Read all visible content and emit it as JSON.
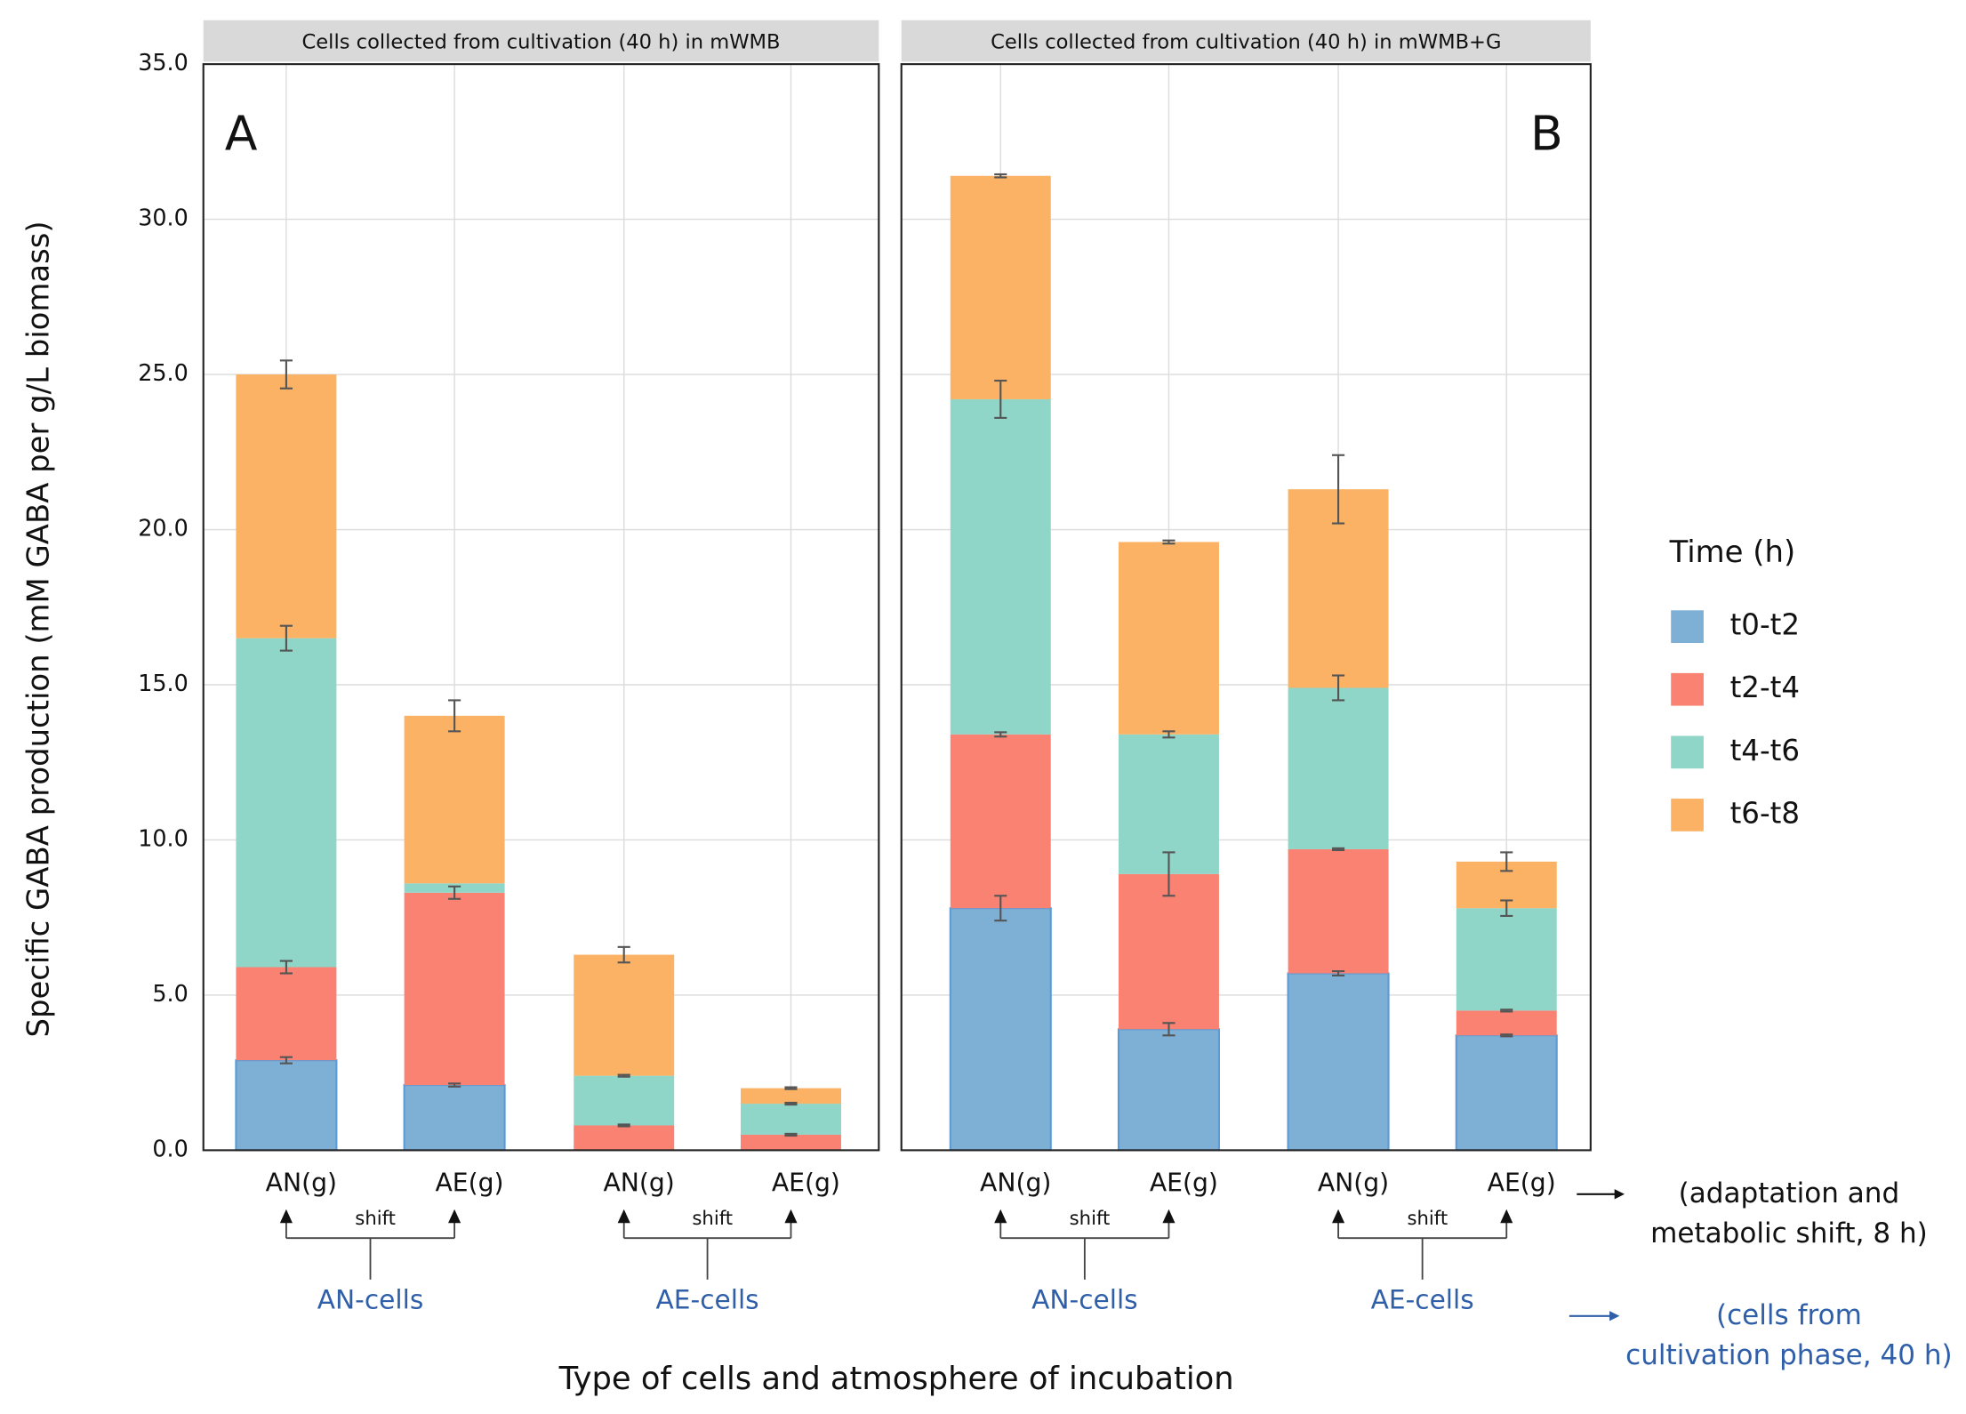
{
  "chart_data": {
    "type": "bar",
    "stacked": true,
    "y_label": "Specific GABA production (mM GABA per g/L biomass)",
    "x_label": "Type of cells and atmosphere of incubation",
    "legend_title": "Time (h)",
    "ylim": [
      0,
      35
    ],
    "yticks": [
      {
        "value": 0,
        "label": "0.0"
      },
      {
        "value": 5,
        "label": "5.0"
      },
      {
        "value": 10,
        "label": "10.0"
      },
      {
        "value": 15,
        "label": "15.0"
      },
      {
        "value": 20,
        "label": "20.0"
      },
      {
        "value": 25,
        "label": "25.0"
      },
      {
        "value": 30,
        "label": "30.0"
      },
      {
        "value": 35,
        "label": "35.0"
      }
    ],
    "grid": true,
    "shift_label": "shift",
    "right_notes": [
      [
        "(adaptation and",
        "metabolic shift, 8 h)"
      ],
      [
        "(cells from",
        "cultivation phase, 40 h)"
      ]
    ],
    "panels": [
      {
        "title": "Cells collected from cultivation (40 h) in mWMB",
        "letter": "A",
        "categories": [
          "AN(g)",
          "AE(g)",
          "AN(g)",
          "AE(g)"
        ],
        "groups": [
          "AN-cells",
          "AE-cells"
        ]
      },
      {
        "title": "Cells collected from cultivation (40 h) in mWMB+G",
        "letter": "B",
        "categories": [
          "AN(g)",
          "AE(g)",
          "AN(g)",
          "AE(g)"
        ],
        "groups": [
          "AN-cells",
          "AE-cells"
        ]
      }
    ],
    "series": [
      {
        "name": "t0-t2",
        "color": "#7eb0d5",
        "values": [
          [
            2.9,
            2.1,
            0,
            0
          ],
          [
            7.8,
            3.9,
            5.7,
            3.7
          ]
        ],
        "errors": [
          [
            0.1,
            0.05,
            null,
            null
          ],
          [
            0.4,
            0.2,
            0.07,
            0.03
          ]
        ]
      },
      {
        "name": "t2-t4",
        "color": "#f98272",
        "values": [
          [
            3.0,
            6.2,
            0.8,
            0.5
          ],
          [
            5.6,
            5.0,
            4.0,
            0.8
          ]
        ],
        "errors": [
          [
            0.2,
            0.2,
            0.03,
            0.03
          ],
          [
            0.07,
            0.7,
            0.03,
            0.03
          ]
        ]
      },
      {
        "name": "t4-t6",
        "color": "#8fd5c8",
        "values": [
          [
            10.6,
            0.3,
            1.6,
            1.0
          ],
          [
            10.8,
            4.5,
            5.2,
            3.3
          ]
        ],
        "errors": [
          [
            0.4,
            null,
            0.03,
            0.03
          ],
          [
            0.6,
            0.1,
            0.4,
            0.25
          ]
        ]
      },
      {
        "name": "t6-t8",
        "color": "#fbb264",
        "values": [
          [
            8.5,
            5.4,
            3.9,
            0.5
          ],
          [
            7.2,
            6.2,
            6.4,
            1.5
          ]
        ],
        "errors": [
          [
            0.45,
            0.5,
            0.25,
            0.03
          ],
          [
            0.05,
            0.05,
            1.1,
            0.3
          ]
        ]
      }
    ]
  }
}
